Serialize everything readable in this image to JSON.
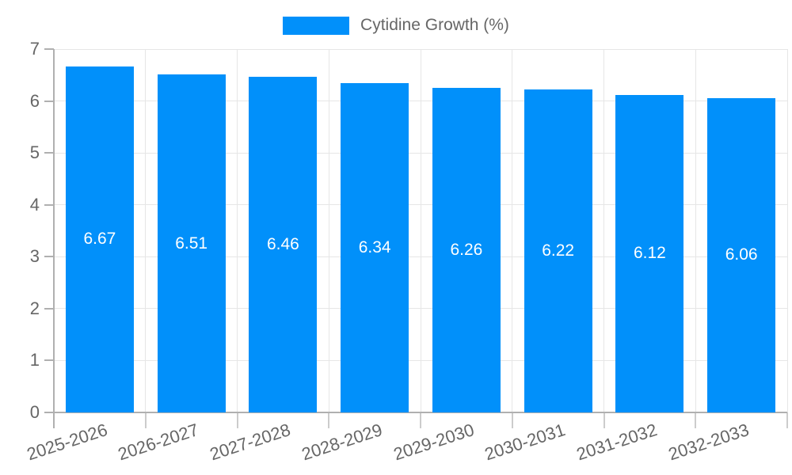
{
  "chart_data": {
    "type": "bar",
    "title": "",
    "categories": [
      "2025-2026",
      "2026-2027",
      "2027-2028",
      "2028-2029",
      "2029-2030",
      "2030-2031",
      "2031-2032",
      "2032-2033"
    ],
    "series": [
      {
        "name": "Cytidine Growth (%)",
        "values": [
          6.67,
          6.51,
          6.46,
          6.34,
          6.26,
          6.22,
          6.12,
          6.06
        ],
        "value_labels": [
          "6.67",
          "6.51",
          "6.46",
          "6.34",
          "6.26",
          "6.22",
          "6.12",
          "6.06"
        ],
        "color": "#0190fa"
      }
    ],
    "ylim": [
      0,
      7
    ],
    "yticks": [
      0,
      1,
      2,
      3,
      4,
      5,
      6,
      7
    ],
    "grid": true,
    "legend_position": "top",
    "value_labels_inside_bars": true,
    "colors": {
      "bar": "#0190fa",
      "gridline": "#e6e6e6",
      "axis": "#b0b0b0",
      "boundary_tick": "#cccccc",
      "tick_text": "#666666",
      "value_label_text": "#ffffff",
      "legend_text": "#666666"
    }
  }
}
